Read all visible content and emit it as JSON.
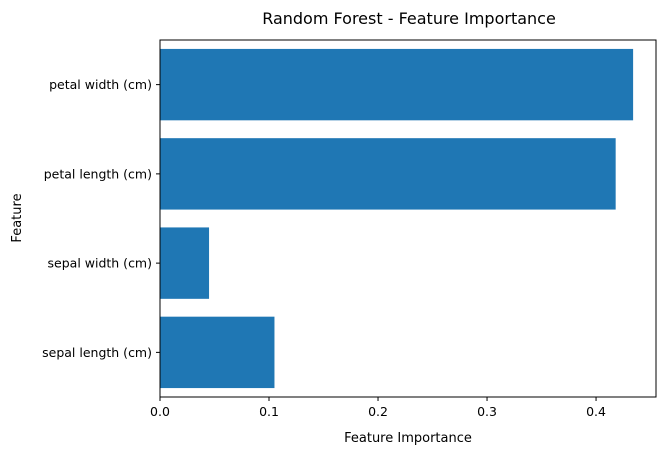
{
  "chart_data": {
    "type": "bar",
    "orientation": "horizontal",
    "title": "Random Forest - Feature Importance",
    "xlabel": "Feature Importance",
    "ylabel": "Feature",
    "categories": [
      "sepal length (cm)",
      "sepal width (cm)",
      "petal length (cm)",
      "petal width (cm)"
    ],
    "values": [
      0.105,
      0.045,
      0.418,
      0.434
    ],
    "xlim": [
      0,
      0.455
    ],
    "xticks": [
      "0.0",
      "0.1",
      "0.2",
      "0.3",
      "0.4"
    ],
    "grid": false,
    "bar_color": "#1f77b4"
  }
}
